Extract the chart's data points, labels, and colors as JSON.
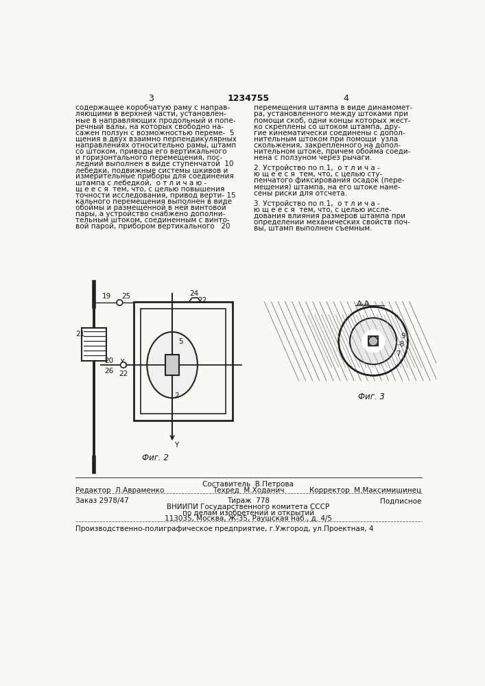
{
  "bg_color": "#f8f8f5",
  "header": {
    "left_number": "3",
    "center_number": "1234755",
    "right_number": "4"
  },
  "left_column_text": [
    "содержащее коробчатую раму с направ-",
    "ляющими в верхней части, установлен-",
    "ные в направляющих продольный и попе-",
    "речный валы, на которых свободно на-",
    "сажен ползун с возможностью переме-  5",
    "щения в двух взаимно перпендикулярных",
    "направлениях относительно рамы, штамп",
    "со штоком, приводы его вертикального",
    "и горизонтального перемещения, пос-",
    "ледний выполнен в виде ступенчатой  10",
    "лебедки, подвижные системы шкивов и",
    "измерительные приборы для соединения",
    "штампа с лебедкой,  о т л и ч а ю -",
    "щ е е с я  тем, что, с целью повышения",
    "точности исследования, привод верти- 15",
    "кального перемещения выполнен в виде",
    "обоймы и размещенной в ней винтовой",
    "пары, а устройство снабжено дополни-",
    "тельным штоком, соединенным с винто-",
    "вой парой, прибором вертикального   20"
  ],
  "right_column_text": [
    "перемещения штампа в виде динамомет-",
    "ра, установленного между штоками при",
    "помощи скоб, одни концы которых жест-",
    "ко скреплены со штоком штампа, дру-",
    "гие кинематически соединены с допол-",
    "нительным штоком при помощи  узла",
    "скольжения, закрепленного на допол-",
    "нительном штоке, причем обойма соеди-",
    "нена с ползуном через рычаги."
  ],
  "claim2_text": [
    "2. Устройство по п.1,  о т л и ч а -",
    "ю щ е е с я  тем, что, с целью сту-",
    "пенчатого фиксирования осадок (пере-",
    "мещения) штампа, на его штоке нане-",
    "сены риски для отсчета."
  ],
  "claim3_text": [
    "3. Устройство по п.1,  о т л и ч а -",
    "ю щ е е с я  тем, что, с целью иссле-",
    "дования влияния размеров штампа при",
    "определении механических свойств поч-",
    "вы, штамп выполнен съемным."
  ],
  "footer_line1_center": "Составитель  В.Петрова",
  "footer_line1_left": "Редактор  Л.Авраменко",
  "footer_line2_center": "Техред  М.Ходанич",
  "footer_line2_right": "Корректор  М.Максимишинец",
  "footer_line3_left": "Заказ 2978/47",
  "footer_line3_center": "Тираж  778",
  "footer_line3_right": "Подписное",
  "footer_line4": "ВНИИПИ Государственного комитета СССР",
  "footer_line5": "по делам изобретений и открытий",
  "footer_line6": "113035, Москва, Ж-35, Раушская наб., д. 4/5",
  "footer_line7": "Производственно-полиграфическое предприятие, г.Ужгород, ул.Проектная, 4",
  "fig2_caption": "Фиг. 2",
  "fig3_caption": "Фиг. 3",
  "fig3_label": "А-А"
}
